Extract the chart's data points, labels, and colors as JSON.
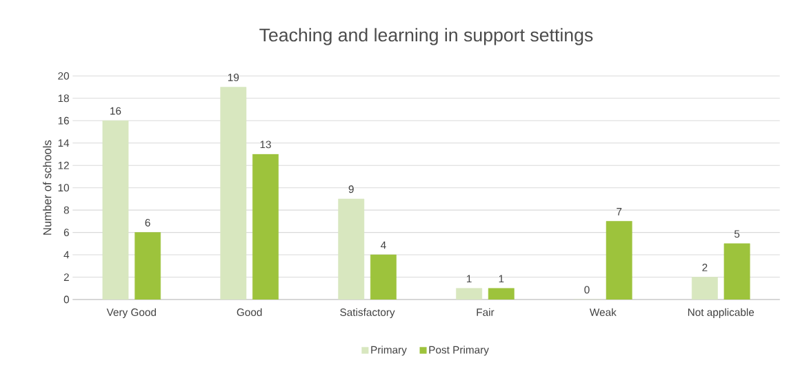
{
  "chart_data": {
    "type": "bar",
    "title": "Teaching and learning in support settings",
    "ylabel": "Number of schools",
    "categories": [
      "Very Good",
      "Good",
      "Satisfactory",
      "Fair",
      "Weak",
      "Not applicable"
    ],
    "series": [
      {
        "name": "Primary",
        "color": "#d8e7bf",
        "values": [
          16,
          19,
          9,
          1,
          0,
          2
        ]
      },
      {
        "name": "Post Primary",
        "color": "#9dc33c",
        "values": [
          6,
          13,
          4,
          1,
          7,
          5
        ]
      }
    ],
    "ylim": [
      0,
      20
    ],
    "yticks": [
      0,
      2,
      4,
      6,
      8,
      10,
      12,
      14,
      16,
      18,
      20
    ],
    "grid": "y",
    "legend": "bottom",
    "data_labels": true
  }
}
